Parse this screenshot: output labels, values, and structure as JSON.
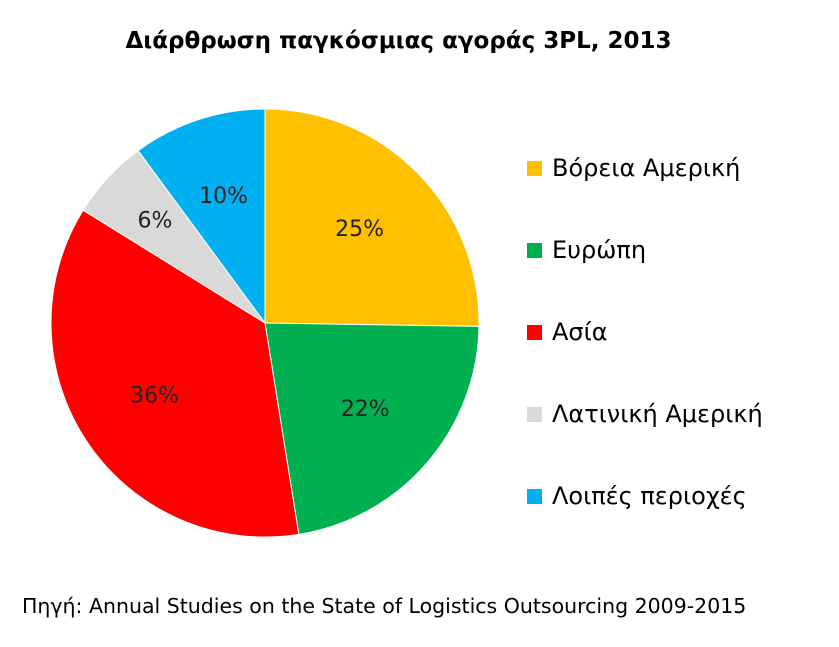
{
  "chart_data": {
    "type": "pie",
    "title": "Διάρθρωση παγκόσμιας αγοράς 3PL, 2013",
    "categories": [
      "Βόρεια Αμερική",
      "Ευρώπη",
      "Ασία",
      "Λατινική Αμερική",
      "Λοιπές περιοχές"
    ],
    "values": [
      25,
      22,
      36,
      6,
      10
    ],
    "value_labels": [
      "25%",
      "22%",
      "36%",
      "6%",
      "10%"
    ],
    "colors": [
      "#FFC000",
      "#00B050",
      "#FF0000",
      "#D9D9D9",
      "#00B0F0"
    ],
    "legend_position": "right"
  },
  "source_note": "Πηγή: Annual Studies on the State of Logistics Outsourcing 2009-2015"
}
